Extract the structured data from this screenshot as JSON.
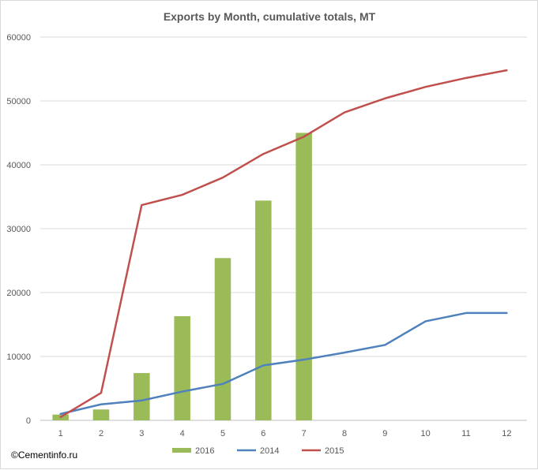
{
  "chart_data": {
    "type": "bar",
    "title": "Exports by Month, cumulative totals, MT",
    "xlabel": "",
    "ylabel": "",
    "categories": [
      "1",
      "2",
      "3",
      "4",
      "5",
      "6",
      "7",
      "8",
      "9",
      "10",
      "11",
      "12"
    ],
    "ylim": [
      0,
      60000
    ],
    "yticks": [
      "0",
      "10000",
      "20000",
      "30000",
      "40000",
      "50000",
      "60000"
    ],
    "grid": true,
    "legend": "bottom",
    "series": [
      {
        "name": "2016",
        "kind": "bar",
        "color": "#9bbb59",
        "values": [
          900,
          1700,
          7400,
          16300,
          25400,
          34400,
          45000,
          null,
          null,
          null,
          null,
          null
        ]
      },
      {
        "name": "2014",
        "kind": "line",
        "color": "#4f81bd",
        "values": [
          1000,
          2500,
          3100,
          4500,
          5700,
          8600,
          9500,
          10600,
          11800,
          15500,
          16800,
          16800
        ]
      },
      {
        "name": "2015",
        "kind": "line",
        "color": "#c0504d",
        "values": [
          500,
          4300,
          33700,
          35300,
          38000,
          41700,
          44400,
          48200,
          50400,
          52200,
          53600,
          54800
        ]
      }
    ]
  },
  "watermark": "©Cementinfo.ru"
}
